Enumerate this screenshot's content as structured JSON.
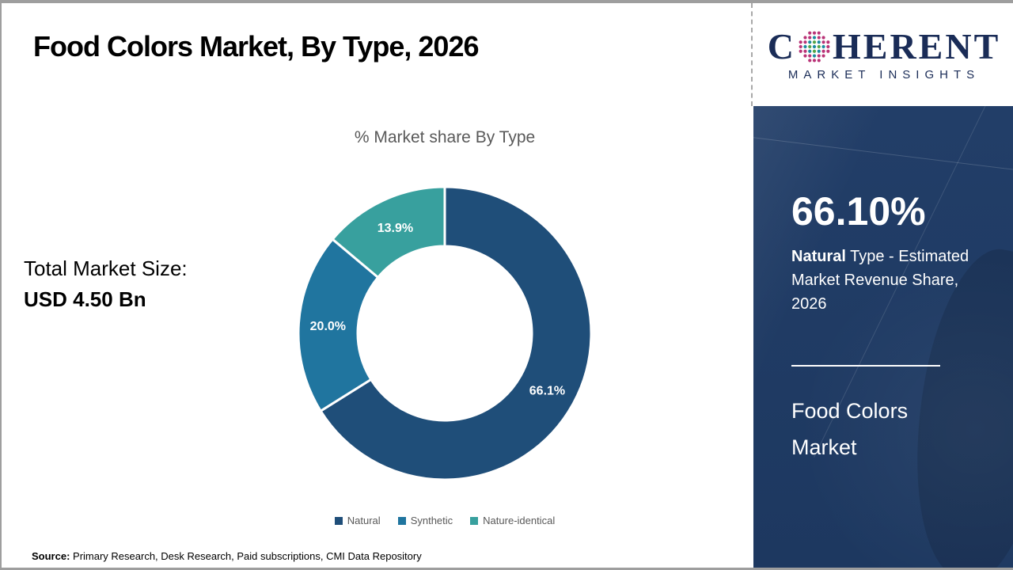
{
  "header": {
    "title": "Food Colors Market, By Type, 2026",
    "logo": {
      "word_start": "C",
      "word_end": "HERENT",
      "subtitle": "MARKET INSIGHTS",
      "text_color": "#1a2c57",
      "dot_colors": {
        "magenta": "#b93377",
        "teal": "#1b8aa0",
        "green": "#55a546"
      }
    }
  },
  "main": {
    "total_market_size_label": "Total Market Size:",
    "total_market_size_value": "USD 4.50 Bn",
    "source_label": "Source:",
    "source_text": " Primary Research, Desk Research, Paid subscriptions, CMI Data Repository"
  },
  "chart_data": {
    "type": "pie",
    "subtype": "donut",
    "title": "% Market share By Type",
    "start_angle_deg": 0,
    "direction": "clockwise",
    "legend_position": "bottom",
    "slices": [
      {
        "label": "Natural",
        "value": 66.1,
        "display": "66.1%",
        "color": "#1f4e79"
      },
      {
        "label": "Synthetic",
        "value": 20.0,
        "display": "20.0%",
        "color": "#20759f"
      },
      {
        "label": "Nature-identical",
        "value": 13.9,
        "display": "13.9%",
        "color": "#38a09e"
      }
    ]
  },
  "sidebar": {
    "background_color": "#203a64",
    "stat_value": "66.10%",
    "stat_label_bold": "Natural",
    "stat_label_rest": " Type - Estimated Market Revenue Share, 2026",
    "report_title": "Food Colors Market"
  }
}
